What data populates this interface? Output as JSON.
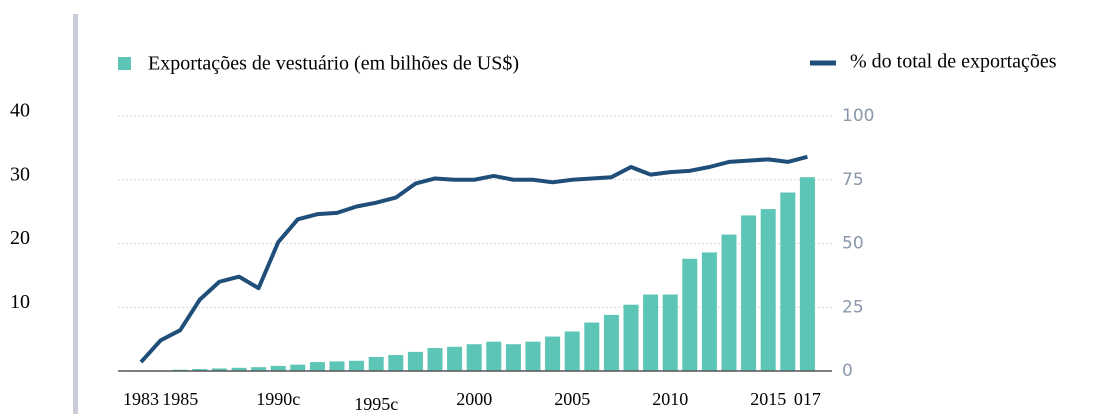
{
  "chart_data": {
    "type": "bar_line",
    "categories": [
      "1983",
      null,
      "1985",
      null,
      null,
      null,
      null,
      "1990c",
      null,
      null,
      null,
      null,
      "1995c",
      null,
      null,
      null,
      null,
      "2000",
      null,
      null,
      null,
      null,
      "2005",
      null,
      null,
      null,
      null,
      "2010",
      null,
      null,
      null,
      null,
      "2015",
      null,
      "017"
    ],
    "series": [
      {
        "name": "Exportações de vestuário (em bilhões de US$)",
        "color": "#5cc5b5",
        "type": "bar",
        "values": [
          0.1,
          0.1,
          0.2,
          0.3,
          0.4,
          0.5,
          0.6,
          0.8,
          1.0,
          1.4,
          1.5,
          1.6,
          2.2,
          2.5,
          3.0,
          3.6,
          3.8,
          4.2,
          4.6,
          4.2,
          4.6,
          5.4,
          6.2,
          7.6,
          8.8,
          10.4,
          12.0,
          12.0,
          17.6,
          18.6,
          21.4,
          24.4,
          25.4,
          28.0,
          30.4
        ]
      },
      {
        "name": "% do total de exportações",
        "color": "#1f4e79",
        "type": "line",
        "axis": "y2",
        "values": [
          3.5,
          12,
          16,
          28,
          35,
          37,
          32.5,
          50.5,
          59.5,
          61.5,
          62,
          64.5,
          66,
          68,
          73.5,
          75.5,
          75,
          75,
          76.5,
          75,
          75,
          74,
          75,
          75.5,
          76,
          80,
          77,
          78,
          78.5,
          80,
          82,
          82.5,
          83,
          82,
          84
        ]
      }
    ],
    "ylim": [
      0,
      40
    ],
    "yticks": [
      10,
      20,
      30,
      40
    ],
    "y2lim": [
      0,
      100
    ],
    "y2ticks": [
      0,
      25,
      50,
      75,
      100
    ],
    "grid": true
  }
}
